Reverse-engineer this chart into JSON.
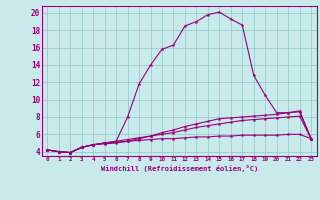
{
  "xlabel": "Windchill (Refroidissement éolien,°C)",
  "background_color": "#c8eaea",
  "grid_color": "#99cccc",
  "line_color": "#990077",
  "xlim": [
    -0.5,
    23.5
  ],
  "ylim": [
    3.5,
    20.8
  ],
  "xticks": [
    0,
    1,
    2,
    3,
    4,
    5,
    6,
    7,
    8,
    9,
    10,
    11,
    12,
    13,
    14,
    15,
    16,
    17,
    18,
    19,
    20,
    21,
    22,
    23
  ],
  "yticks": [
    4,
    6,
    8,
    10,
    12,
    14,
    16,
    18,
    20
  ],
  "series": [
    [
      4.2,
      4.0,
      3.9,
      4.5,
      4.8,
      5.0,
      5.2,
      8.0,
      11.8,
      14.0,
      15.8,
      16.3,
      18.5,
      19.0,
      19.8,
      20.1,
      19.3,
      18.6,
      12.8,
      10.5,
      8.5,
      8.5,
      8.7,
      5.5
    ],
    [
      4.2,
      4.0,
      3.9,
      4.5,
      4.8,
      4.9,
      5.0,
      5.2,
      5.5,
      5.8,
      6.2,
      6.5,
      6.9,
      7.2,
      7.5,
      7.8,
      7.9,
      8.0,
      8.1,
      8.2,
      8.3,
      8.5,
      8.6,
      5.5
    ],
    [
      4.2,
      4.0,
      3.9,
      4.5,
      4.8,
      5.0,
      5.2,
      5.4,
      5.6,
      5.8,
      6.0,
      6.2,
      6.5,
      6.8,
      7.0,
      7.2,
      7.4,
      7.6,
      7.7,
      7.8,
      7.9,
      8.0,
      8.1,
      5.5
    ],
    [
      4.2,
      4.0,
      3.9,
      4.5,
      4.8,
      5.0,
      5.1,
      5.2,
      5.3,
      5.4,
      5.5,
      5.5,
      5.6,
      5.7,
      5.7,
      5.8,
      5.8,
      5.9,
      5.9,
      5.9,
      5.9,
      6.0,
      6.0,
      5.5
    ]
  ]
}
